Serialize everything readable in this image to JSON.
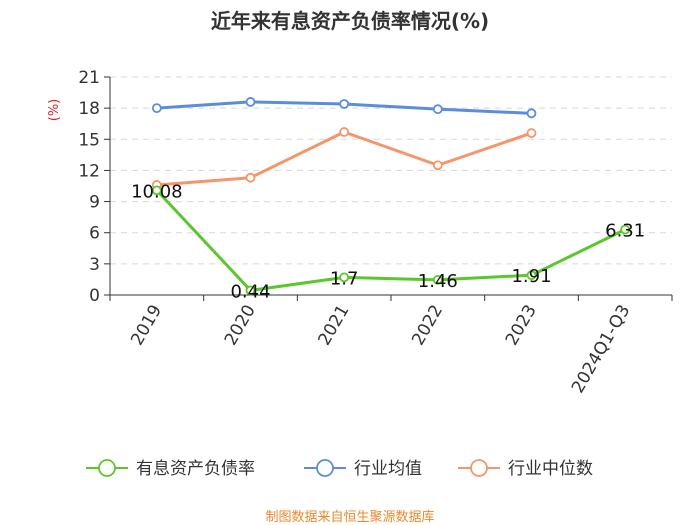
{
  "chart_data": {
    "type": "line",
    "title": "近年来有息资产负债率情况(%)",
    "ylabel": "(%)",
    "categories": [
      "2019",
      "2020",
      "2021",
      "2022",
      "2023",
      "2024Q1-Q3"
    ],
    "ylim": [
      0,
      21
    ],
    "yticks": [
      "0",
      "3",
      "6",
      "9",
      "12",
      "15",
      "18",
      "21"
    ],
    "grid": true,
    "legend_position": "bottom",
    "series": [
      {
        "name": "有息资产负债率",
        "color": "#5cc72c",
        "values": [
          10.08,
          0.44,
          1.7,
          1.46,
          1.91,
          6.31
        ],
        "labels": [
          "10.08",
          "0.44",
          "1.7",
          "1.46",
          "1.91",
          "6.31"
        ]
      },
      {
        "name": "行业均值",
        "color": "#5b8ddc",
        "values": [
          18.0,
          18.6,
          18.4,
          17.9,
          17.5,
          null
        ]
      },
      {
        "name": "行业中位数",
        "color": "#f5956a",
        "values": [
          10.6,
          11.3,
          15.7,
          12.5,
          15.6,
          null
        ]
      }
    ],
    "source": "制图数据来自恒生聚源数据库"
  }
}
